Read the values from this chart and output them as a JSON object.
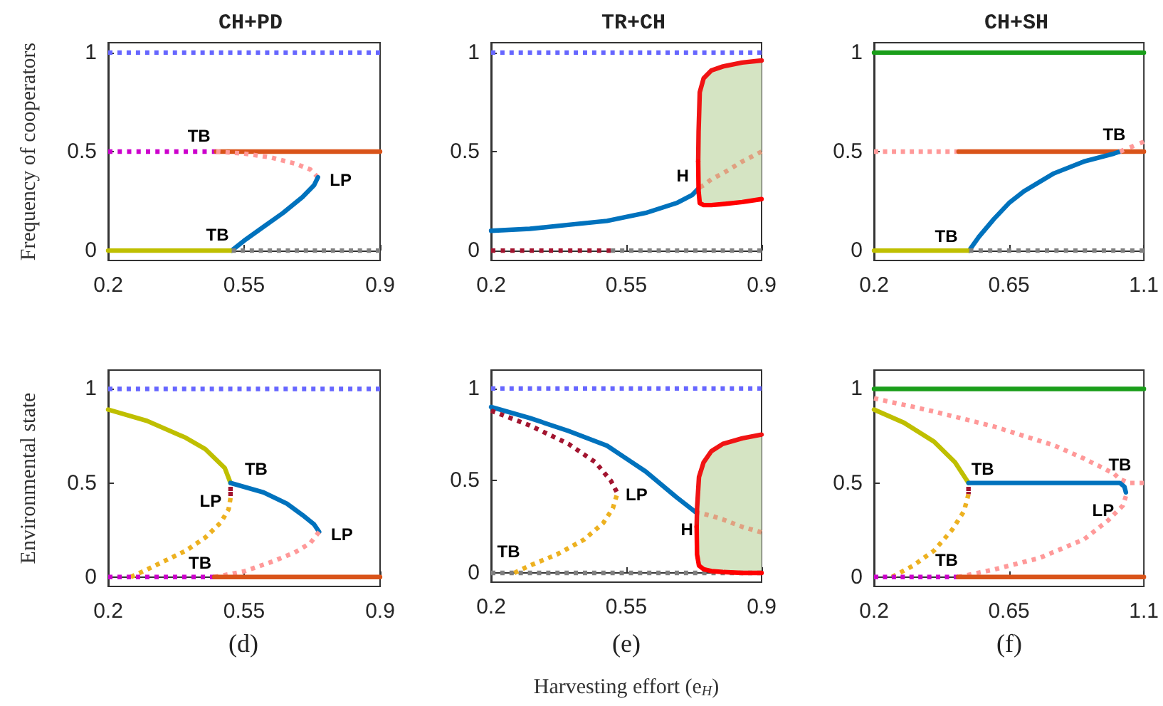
{
  "chart_data": [
    {
      "type": "line",
      "title": "CH+PD",
      "ylabel": "Frequency of cooperators",
      "xlim": [
        0.2,
        0.9
      ],
      "xticks": [
        0.2,
        0.55,
        0.9
      ],
      "ylim": [
        -0.05,
        1.05
      ],
      "yticks": [
        0,
        0.5,
        1
      ],
      "series": [
        {
          "color": "#6666ff",
          "line_style": "dotted",
          "x": [
            0.2,
            0.9
          ],
          "values": [
            1,
            1
          ]
        },
        {
          "color": "#cc00cc",
          "line_style": "dotted",
          "x": [
            0.2,
            0.478
          ],
          "values": [
            0.5,
            0.5
          ]
        },
        {
          "color": "#d95319",
          "line_style": "solid",
          "x": [
            0.478,
            0.9
          ],
          "values": [
            0.5,
            0.5
          ]
        },
        {
          "color": "#ff9999",
          "line_style": "dotted",
          "x": [
            0.478,
            0.55,
            0.62,
            0.68,
            0.72,
            0.74
          ],
          "values": [
            0.5,
            0.49,
            0.47,
            0.44,
            0.41,
            0.37
          ]
        },
        {
          "color": "#0072bd",
          "line_style": "solid",
          "x": [
            0.518,
            0.55,
            0.6,
            0.65,
            0.7,
            0.73,
            0.74
          ],
          "values": [
            0,
            0.05,
            0.12,
            0.19,
            0.27,
            0.33,
            0.37
          ]
        },
        {
          "color": "#bfbf00",
          "line_style": "solid",
          "x": [
            0.2,
            0.518
          ],
          "values": [
            0,
            0
          ]
        },
        {
          "color": "#808080",
          "line_style": "dotted",
          "x": [
            0.518,
            0.9
          ],
          "values": [
            0,
            0
          ]
        }
      ],
      "annotations": [
        {
          "text": "TB",
          "x": 0.478,
          "y": 0.5
        },
        {
          "text": "LP",
          "x": 0.74,
          "y": 0.37
        },
        {
          "text": "TB",
          "x": 0.518,
          "y": 0
        }
      ]
    },
    {
      "type": "line",
      "title": "TR+CH",
      "xlim": [
        0.2,
        0.9
      ],
      "xticks": [
        0.2,
        0.55,
        0.9
      ],
      "ylim": [
        -0.05,
        1.05
      ],
      "yticks": [
        0,
        0.5,
        1
      ],
      "series": [
        {
          "color": "#6666ff",
          "line_style": "dotted",
          "x": [
            0.2,
            0.9
          ],
          "values": [
            1,
            1
          ]
        },
        {
          "color": "#a2142f",
          "line_style": "dotted",
          "x": [
            0.2,
            0.51
          ],
          "values": [
            0,
            0
          ]
        },
        {
          "color": "#808080",
          "line_style": "dotted",
          "x": [
            0.51,
            0.9
          ],
          "values": [
            0,
            0
          ]
        },
        {
          "color": "#0072bd",
          "line_style": "solid",
          "x": [
            0.2,
            0.3,
            0.4,
            0.5,
            0.6,
            0.68,
            0.72,
            0.74
          ],
          "values": [
            0.1,
            0.11,
            0.13,
            0.15,
            0.19,
            0.24,
            0.28,
            0.32
          ]
        },
        {
          "color": "#e0a080",
          "line_style": "dotted",
          "x": [
            0.74,
            0.75,
            0.77,
            0.8,
            0.85,
            0.9
          ],
          "values": [
            0.32,
            0.33,
            0.36,
            0.39,
            0.45,
            0.5
          ],
          "upper": [
            0.8,
            0.87,
            0.91,
            0.93,
            0.95,
            0.96
          ],
          "lower": [
            0.24,
            0.23,
            0.23,
            0.235,
            0.245,
            0.26
          ]
        },
        {
          "color": "#f01414",
          "line_style": "solid",
          "x": [
            0.736,
            0.737,
            0.74,
            0.75,
            0.77,
            0.8,
            0.85,
            0.9
          ],
          "values": [
            0.45,
            0.6,
            0.8,
            0.87,
            0.91,
            0.93,
            0.95,
            0.96
          ]
        },
        {
          "color": "#ff0000",
          "line_style": "solid",
          "x": [
            0.736,
            0.737,
            0.74,
            0.75,
            0.77,
            0.8,
            0.85,
            0.9
          ],
          "values": [
            0.45,
            0.3,
            0.24,
            0.23,
            0.23,
            0.235,
            0.245,
            0.26
          ]
        }
      ],
      "annotations": [
        {
          "text": "H",
          "x": 0.74,
          "y": 0.32
        }
      ]
    },
    {
      "type": "line",
      "title": "CH+SH",
      "xlim": [
        0.2,
        1.1
      ],
      "xticks": [
        0.2,
        0.65,
        1.1
      ],
      "ylim": [
        -0.05,
        1.05
      ],
      "yticks": [
        0,
        0.5,
        1
      ],
      "series": [
        {
          "color": "#1a9e1a",
          "line_style": "solid",
          "x": [
            0.2,
            1.1
          ],
          "values": [
            1,
            1
          ]
        },
        {
          "color": "#ff9999",
          "line_style": "dotted",
          "x": [
            0.2,
            0.482
          ],
          "values": [
            0.5,
            0.5
          ]
        },
        {
          "color": "#d95319",
          "line_style": "solid",
          "x": [
            0.482,
            1.1
          ],
          "values": [
            0.5,
            0.5
          ]
        },
        {
          "color": "#0072bd",
          "line_style": "solid",
          "x": [
            0.517,
            0.55,
            0.6,
            0.65,
            0.7,
            0.8,
            0.9,
            1.0,
            1.02
          ],
          "values": [
            0,
            0.07,
            0.16,
            0.24,
            0.3,
            0.39,
            0.45,
            0.49,
            0.5
          ]
        },
        {
          "color": "#ff9999",
          "line_style": "dotted",
          "x": [
            1.02,
            1.1
          ],
          "values": [
            0.5,
            0.55
          ]
        },
        {
          "color": "#bfbf00",
          "line_style": "solid",
          "x": [
            0.2,
            0.517
          ],
          "values": [
            0,
            0
          ]
        },
        {
          "color": "#808080",
          "line_style": "dotted",
          "x": [
            0.517,
            1.1
          ],
          "values": [
            0,
            0
          ]
        }
      ],
      "annotations": [
        {
          "text": "TB",
          "x": 0.517,
          "y": 0
        },
        {
          "text": "TB",
          "x": 1.02,
          "y": 0.5
        }
      ]
    },
    {
      "type": "line",
      "subtitle": "(d)",
      "ylabel": "Environmental state",
      "xlim": [
        0.2,
        0.9
      ],
      "xticks": [
        0.2,
        0.55,
        0.9
      ],
      "ylim": [
        -0.05,
        1.1
      ],
      "yticks": [
        0,
        0.5,
        1
      ],
      "series": [
        {
          "color": "#6666ff",
          "line_style": "dotted",
          "x": [
            0.2,
            0.9
          ],
          "values": [
            1,
            1
          ]
        },
        {
          "color": "#bfbf00",
          "line_style": "solid",
          "x": [
            0.2,
            0.3,
            0.4,
            0.45,
            0.5,
            0.515
          ],
          "values": [
            0.89,
            0.83,
            0.74,
            0.68,
            0.58,
            0.5
          ]
        },
        {
          "color": "#0072bd",
          "line_style": "solid",
          "x": [
            0.515,
            0.6,
            0.66,
            0.7,
            0.73,
            0.743
          ],
          "values": [
            0.5,
            0.45,
            0.39,
            0.33,
            0.28,
            0.24
          ]
        },
        {
          "color": "#a2142f",
          "line_style": "dotted",
          "x": [
            0.515,
            0.515
          ],
          "values": [
            0.48,
            0.43
          ]
        },
        {
          "color": "#edb120",
          "line_style": "dotted",
          "x": [
            0.258,
            0.3,
            0.35,
            0.4,
            0.45,
            0.49,
            0.51,
            0.515
          ],
          "values": [
            0,
            0.04,
            0.09,
            0.14,
            0.21,
            0.29,
            0.36,
            0.42
          ]
        },
        {
          "color": "#ff9999",
          "line_style": "dotted",
          "x": [
            0.473,
            0.55,
            0.62,
            0.68,
            0.72,
            0.743
          ],
          "values": [
            0,
            0.03,
            0.08,
            0.13,
            0.18,
            0.24
          ]
        },
        {
          "color": "#cc00cc",
          "line_style": "dotted",
          "x": [
            0.2,
            0.473
          ],
          "values": [
            0,
            0
          ]
        },
        {
          "color": "#d95319",
          "line_style": "solid",
          "x": [
            0.473,
            0.9
          ],
          "values": [
            0,
            0
          ]
        }
      ],
      "annotations": [
        {
          "text": "TB",
          "x": 0.515,
          "y": 0.5
        },
        {
          "text": "LP",
          "x": 0.515,
          "y": 0.42
        },
        {
          "text": "LP",
          "x": 0.743,
          "y": 0.24
        },
        {
          "text": "TB",
          "x": 0.473,
          "y": 0
        }
      ]
    },
    {
      "type": "line",
      "subtitle": "(e)",
      "xlabel": "Harvesting effort (e$_{H}$)",
      "xlim": [
        0.2,
        0.9
      ],
      "xticks": [
        0.2,
        0.55,
        0.9
      ],
      "ylim": [
        -0.05,
        1.1
      ],
      "yticks": [
        0,
        0.5,
        1
      ],
      "series": [
        {
          "color": "#6666ff",
          "line_style": "dotted",
          "x": [
            0.2,
            0.9
          ],
          "values": [
            1,
            1
          ]
        },
        {
          "color": "#808080",
          "line_style": "dotted",
          "x": [
            0.2,
            0.9
          ],
          "values": [
            0,
            0
          ]
        },
        {
          "color": "#0072bd",
          "line_style": "solid",
          "x": [
            0.2,
            0.3,
            0.4,
            0.5,
            0.55,
            0.6,
            0.68,
            0.729
          ],
          "values": [
            0.9,
            0.84,
            0.77,
            0.69,
            0.62,
            0.55,
            0.41,
            0.33
          ]
        },
        {
          "color": "#a2142f",
          "line_style": "dotted",
          "x": [
            0.2,
            0.3,
            0.4,
            0.47,
            0.51,
            0.525
          ],
          "values": [
            0.88,
            0.8,
            0.7,
            0.6,
            0.5,
            0.44
          ]
        },
        {
          "color": "#edb120",
          "line_style": "dotted",
          "x": [
            0.26,
            0.3,
            0.37,
            0.44,
            0.49,
            0.515,
            0.525
          ],
          "values": [
            0,
            0.04,
            0.1,
            0.18,
            0.27,
            0.35,
            0.42
          ]
        },
        {
          "color": "#e0a080",
          "line_style": "dotted",
          "x": [
            0.729,
            0.733,
            0.738,
            0.75,
            0.77,
            0.8,
            0.85,
            0.9
          ],
          "values": [
            0.33,
            0.33,
            0.325,
            0.32,
            0.31,
            0.29,
            0.25,
            0.22
          ],
          "upper": [
            0.33,
            0.35,
            0.52,
            0.6,
            0.66,
            0.7,
            0.73,
            0.75
          ],
          "lower": [
            0.33,
            0.1,
            0.04,
            0.02,
            0.01,
            0.005,
            0,
            0
          ]
        },
        {
          "color": "#f01414",
          "line_style": "solid",
          "x": [
            0.732,
            0.733,
            0.738,
            0.75,
            0.77,
            0.8,
            0.85,
            0.9
          ],
          "values": [
            0.25,
            0.35,
            0.52,
            0.6,
            0.66,
            0.7,
            0.73,
            0.75
          ]
        },
        {
          "color": "#ff0000",
          "line_style": "solid",
          "x": [
            0.732,
            0.733,
            0.738,
            0.75,
            0.77,
            0.8,
            0.85,
            0.9
          ],
          "values": [
            0.25,
            0.1,
            0.04,
            0.02,
            0.01,
            0.005,
            0,
            0
          ]
        }
      ],
      "annotations": [
        {
          "text": "LP",
          "x": 0.525,
          "y": 0.44
        },
        {
          "text": "H",
          "x": 0.729,
          "y": 0.33
        },
        {
          "text": "TB",
          "x": 0.26,
          "y": 0
        }
      ]
    },
    {
      "type": "line",
      "subtitle": "(f)",
      "xlim": [
        0.2,
        1.1
      ],
      "xticks": [
        0.2,
        0.65,
        1.1
      ],
      "ylim": [
        -0.05,
        1.1
      ],
      "yticks": [
        0,
        0.5,
        1
      ],
      "series": [
        {
          "color": "#1a9e1a",
          "line_style": "solid",
          "x": [
            0.2,
            1.1
          ],
          "values": [
            1,
            1
          ]
        },
        {
          "color": "#ff9999",
          "line_style": "dotted",
          "x": [
            0.2,
            0.4,
            0.6,
            0.8,
            0.9,
            1.0,
            1.02,
            1.05,
            1.1
          ],
          "values": [
            0.95,
            0.88,
            0.8,
            0.7,
            0.63,
            0.55,
            0.52,
            0.5,
            0.5
          ]
        },
        {
          "color": "#bfbf00",
          "line_style": "solid",
          "x": [
            0.2,
            0.3,
            0.4,
            0.47,
            0.515
          ],
          "values": [
            0.89,
            0.82,
            0.72,
            0.61,
            0.5
          ]
        },
        {
          "color": "#0072bd",
          "line_style": "solid",
          "x": [
            0.515,
            1.02,
            1.035,
            1.04
          ],
          "values": [
            0.5,
            0.5,
            0.48,
            0.45
          ]
        },
        {
          "color": "#a2142f",
          "line_style": "dotted",
          "x": [
            0.515,
            0.515
          ],
          "values": [
            0.48,
            0.44
          ]
        },
        {
          "color": "#edb120",
          "line_style": "dotted",
          "x": [
            0.26,
            0.33,
            0.4,
            0.46,
            0.5,
            0.515
          ],
          "values": [
            0,
            0.06,
            0.14,
            0.25,
            0.35,
            0.44
          ]
        },
        {
          "color": "#ff9999",
          "line_style": "dotted",
          "x": [
            0.48,
            0.6,
            0.75,
            0.9,
            0.98,
            1.03,
            1.04
          ],
          "values": [
            0,
            0.04,
            0.1,
            0.2,
            0.3,
            0.38,
            0.43
          ]
        },
        {
          "color": "#cc00cc",
          "line_style": "dotted",
          "x": [
            0.2,
            0.48
          ],
          "values": [
            0,
            0
          ]
        },
        {
          "color": "#d95319",
          "line_style": "solid",
          "x": [
            0.48,
            1.1
          ],
          "values": [
            0,
            0
          ]
        }
      ],
      "annotations": [
        {
          "text": "TB",
          "x": 0.515,
          "y": 0.5
        },
        {
          "text": "TB",
          "x": 1.02,
          "y": 0.5
        },
        {
          "text": "LP",
          "x": 1.04,
          "y": 0.43
        },
        {
          "text": "TB",
          "x": 0.48,
          "y": 0
        }
      ]
    }
  ]
}
